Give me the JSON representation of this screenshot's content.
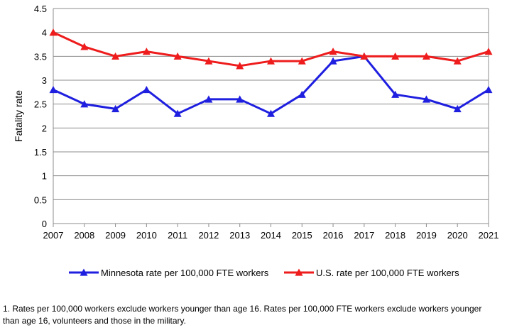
{
  "chart_data": {
    "type": "line",
    "title": "",
    "xlabel": "",
    "ylabel": "Fatality rate",
    "ylim": [
      0,
      4.5
    ],
    "yticks": [
      "0",
      "0.5",
      "1",
      "1.5",
      "2",
      "2.5",
      "3",
      "3.5",
      "4",
      "4.5"
    ],
    "x": [
      "2007",
      "2008",
      "2009",
      "2010",
      "2011",
      "2012",
      "2013",
      "2014",
      "2015",
      "2016",
      "2017",
      "2018",
      "2019",
      "2020",
      "2021"
    ],
    "grid": "horizontal",
    "legend_position": "bottom",
    "series": [
      {
        "name": "Minnesota rate per 100,000 FTE workers",
        "color": "#1f1fe0",
        "marker": "triangle",
        "values": [
          2.8,
          2.5,
          2.4,
          2.8,
          2.3,
          2.6,
          2.6,
          2.3,
          2.7,
          3.4,
          3.5,
          2.7,
          2.6,
          2.4,
          2.8
        ]
      },
      {
        "name": "U.S. rate per 100,000 FTE workers",
        "color": "#ee1c1c",
        "marker": "triangle",
        "values": [
          4.0,
          3.7,
          3.5,
          3.6,
          3.5,
          3.4,
          3.3,
          3.4,
          3.4,
          3.6,
          3.5,
          3.5,
          3.5,
          3.4,
          3.6
        ]
      }
    ]
  },
  "footnote": {
    "line1": "1.  Rates per 100,000 workers exclude workers younger than age 16. Rates per 100,000 FTE workers exclude workers younger",
    "line2": "than age 16, volunteers and those in the military."
  }
}
